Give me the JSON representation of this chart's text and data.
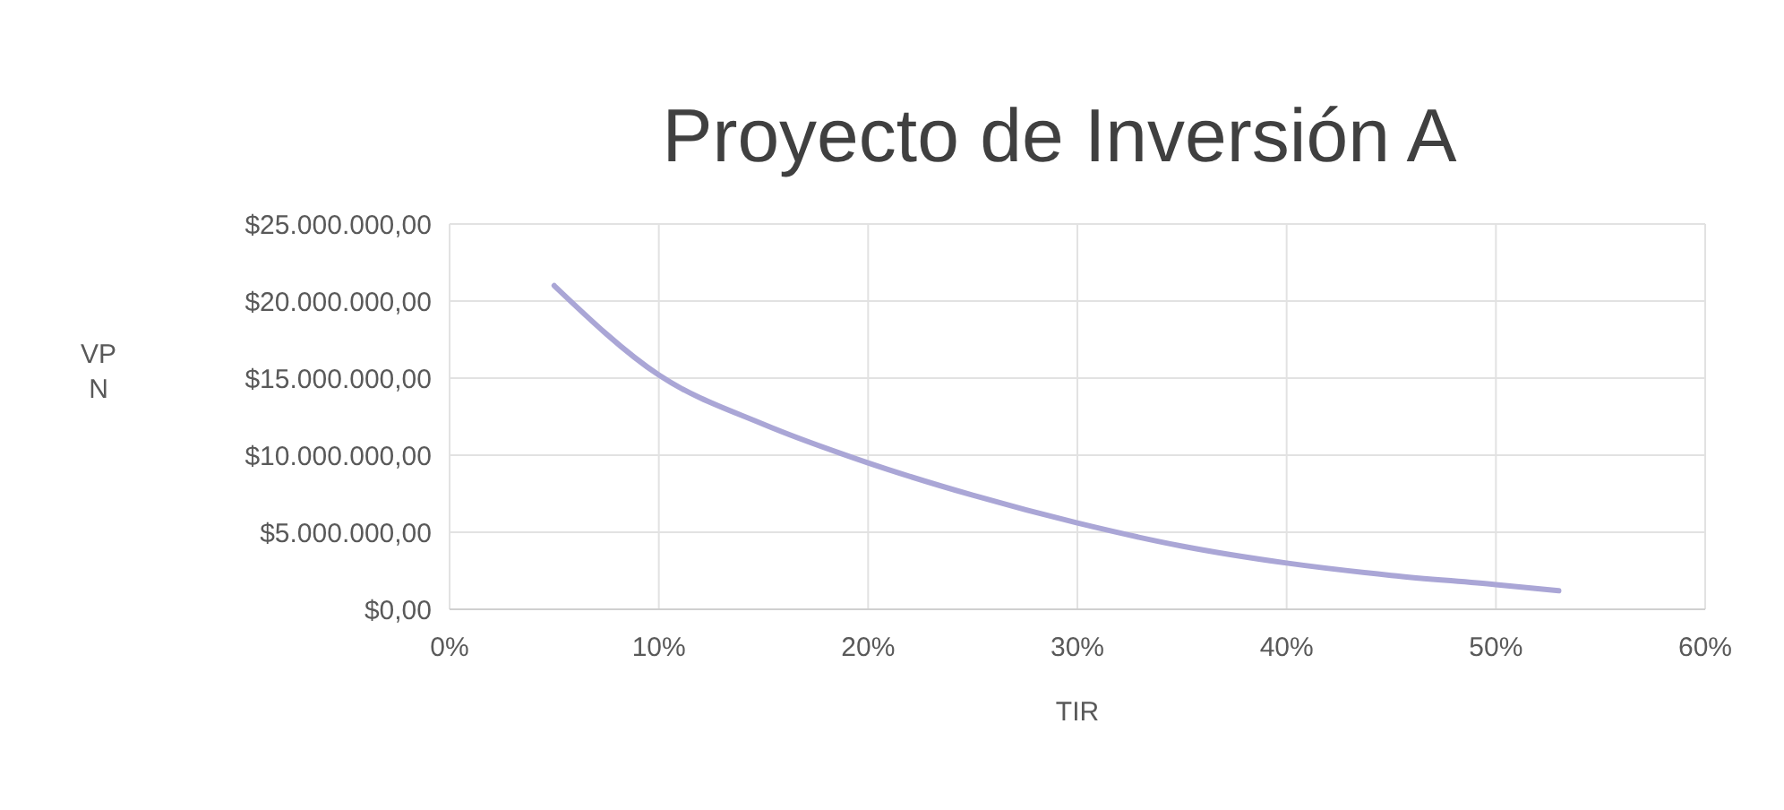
{
  "chart_data": {
    "type": "line",
    "title": "Proyecto de Inversión A",
    "xlabel": "TIR",
    "ylabel": "VPN",
    "x": [
      5,
      10,
      15,
      20,
      25,
      30,
      35,
      40,
      45,
      50,
      53
    ],
    "series": [
      {
        "color": "#aaa6d6",
        "values": [
          21000000,
          15200000,
          12000000,
          9500000,
          7400000,
          5600000,
          4100000,
          3000000,
          2200000,
          1600000,
          1200000
        ]
      }
    ],
    "xlim": [
      0,
      60
    ],
    "xticks": [
      {
        "value": 0,
        "label": "0%"
      },
      {
        "value": 10,
        "label": "10%"
      },
      {
        "value": 20,
        "label": "20%"
      },
      {
        "value": 30,
        "label": "30%"
      },
      {
        "value": 40,
        "label": "40%"
      },
      {
        "value": 50,
        "label": "50%"
      },
      {
        "value": 60,
        "label": "60%"
      }
    ],
    "ylim": [
      0,
      25000000
    ],
    "yticks": [
      {
        "value": 0,
        "label": "$0,00"
      },
      {
        "value": 5000000,
        "label": "$5.000.000,00"
      },
      {
        "value": 10000000,
        "label": "$10.000.000,00"
      },
      {
        "value": 15000000,
        "label": "$15.000.000,00"
      },
      {
        "value": 20000000,
        "label": "$20.000.000,00"
      },
      {
        "value": 25000000,
        "label": "$25.000.000,00"
      }
    ],
    "grid": true,
    "marker": "none",
    "line_style": "solid"
  }
}
